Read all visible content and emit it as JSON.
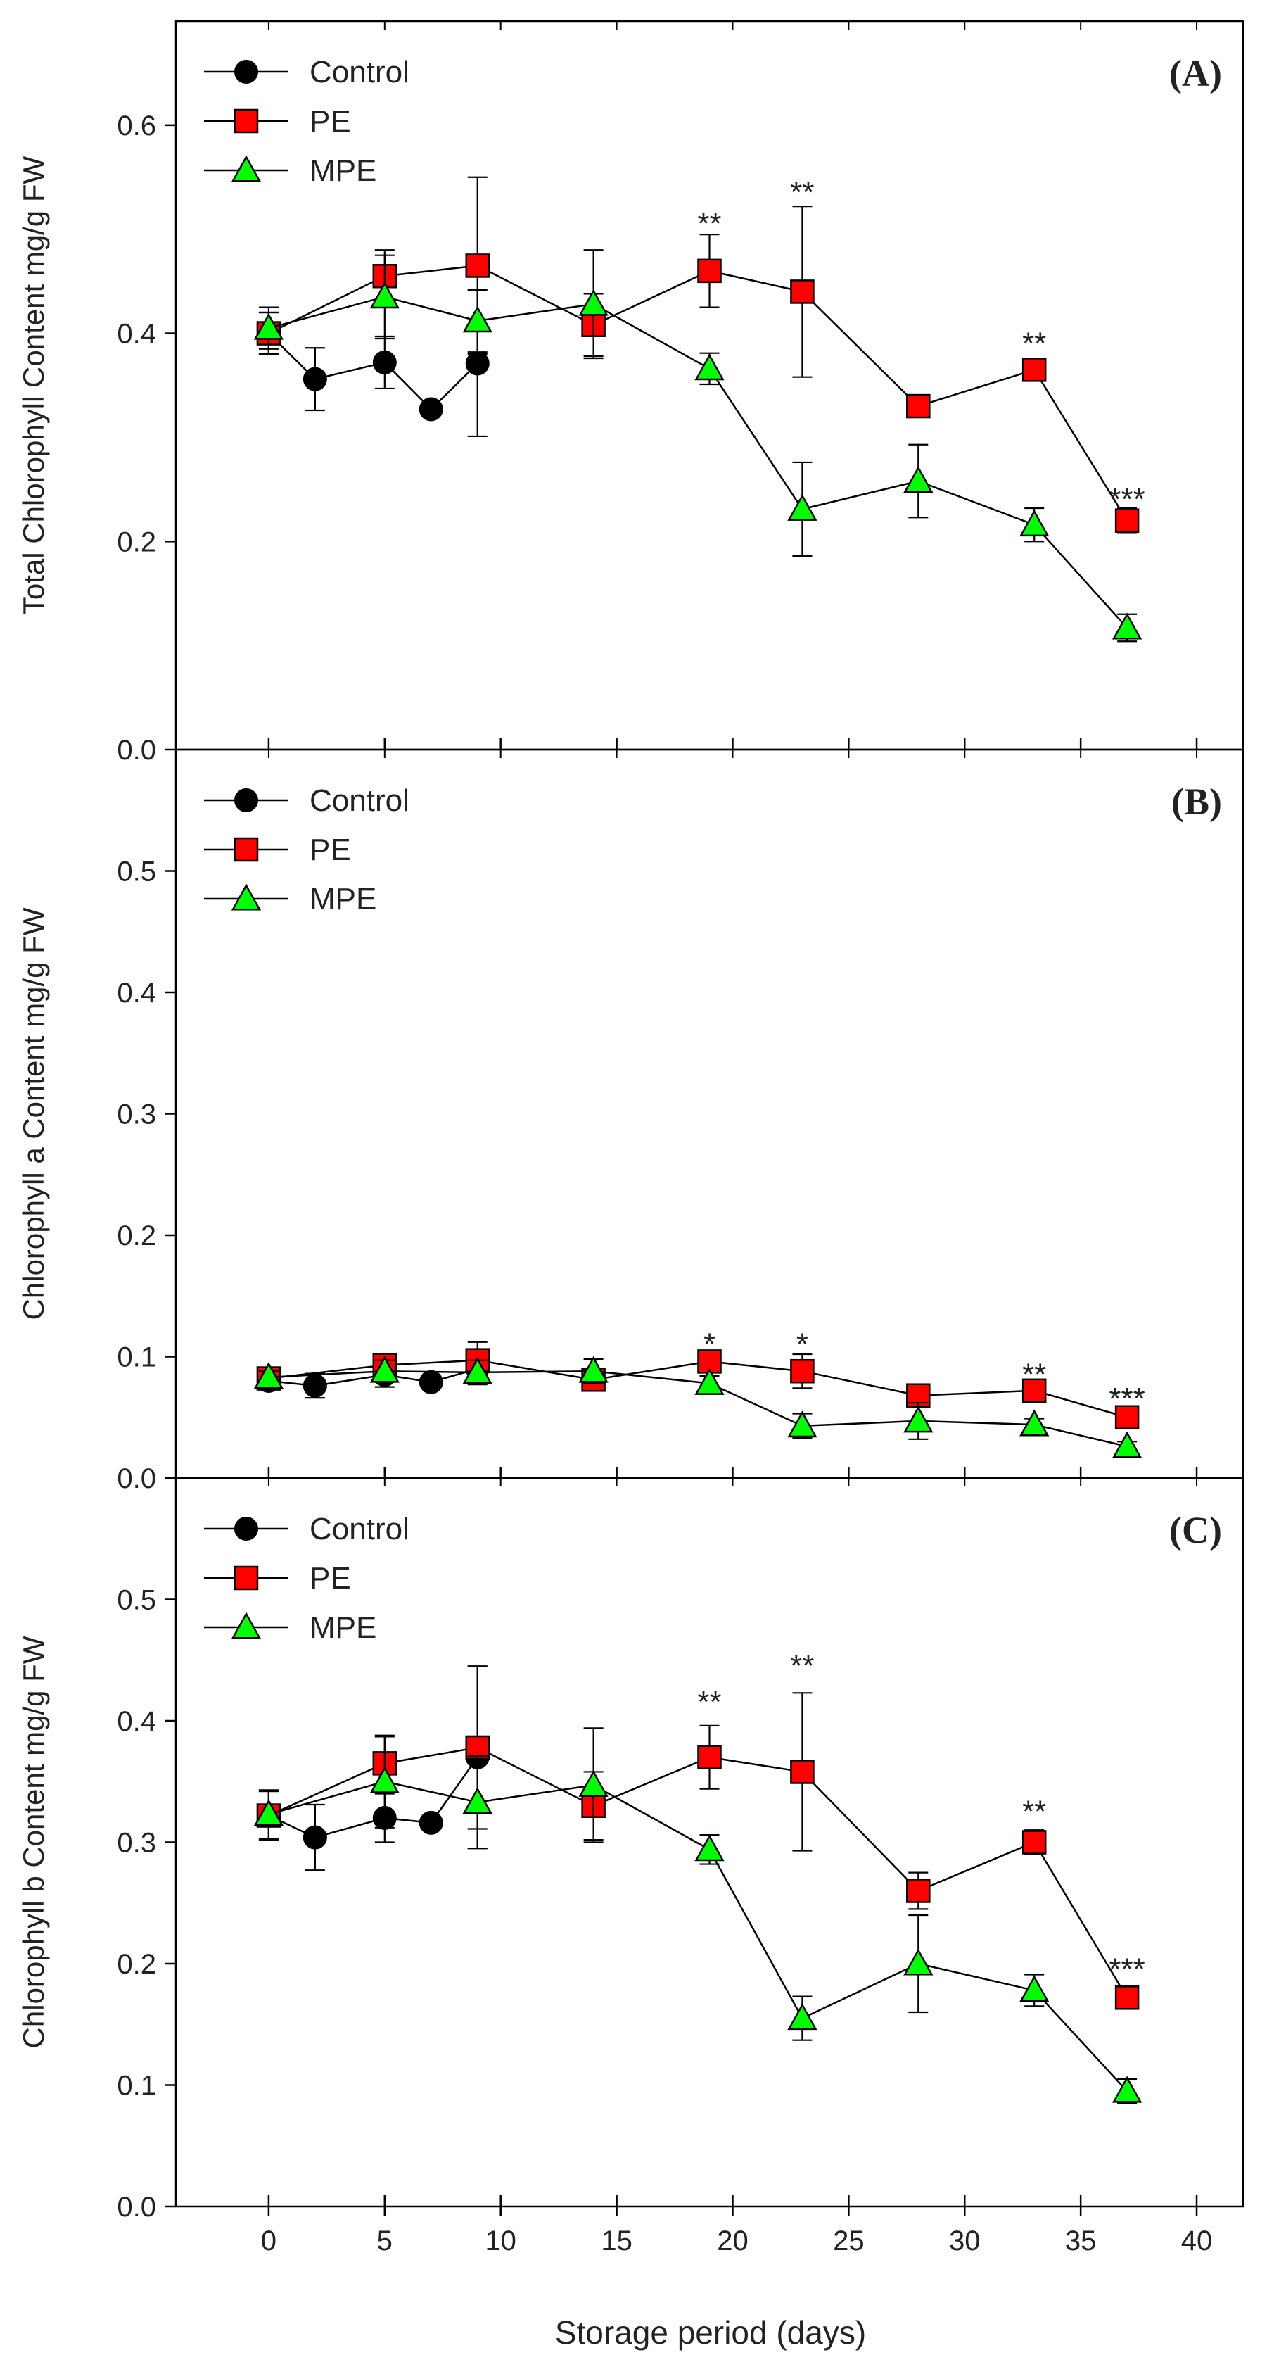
{
  "figure": {
    "xlabel": "Storage period (days)",
    "xticks": [
      0,
      5,
      10,
      15,
      20,
      25,
      30,
      35,
      40
    ],
    "xlim": [
      -4,
      42
    ]
  },
  "colors": {
    "control": "#000000",
    "pe": "#ff0000",
    "mpe": "#00ff00",
    "axis": "#000000"
  },
  "chart_data": [
    {
      "type": "line",
      "panel_label": "(A)",
      "title": "",
      "xlabel": "",
      "ylabel": "Total Chlorophyll Content mg/g FW",
      "ylim": [
        0,
        0.7
      ],
      "yticks": [
        0.0,
        0.2,
        0.4,
        0.6
      ],
      "legend_position": "top-left",
      "series": [
        {
          "name": "Control",
          "key": "control",
          "marker": "circle",
          "x": [
            0,
            2,
            5,
            7,
            9
          ],
          "y": [
            0.4,
            0.356,
            0.372,
            0.327,
            0.371
          ],
          "err": [
            0.02,
            0.03,
            0.025,
            0.005,
            0.07
          ]
        },
        {
          "name": "PE",
          "key": "pe",
          "marker": "square",
          "x": [
            0,
            5,
            9,
            14,
            19,
            23,
            28,
            33,
            37
          ],
          "y": [
            0.4,
            0.455,
            0.465,
            0.408,
            0.46,
            0.44,
            0.33,
            0.365,
            0.22
          ],
          "err": [
            0.02,
            0.025,
            0.085,
            0.03,
            0.035,
            0.082,
            0.008,
            0.01,
            0.012
          ]
        },
        {
          "name": "MPE",
          "key": "mpe",
          "marker": "triangle",
          "x": [
            0,
            5,
            9,
            14,
            19,
            23,
            28,
            33,
            37
          ],
          "y": [
            0.405,
            0.435,
            0.412,
            0.428,
            0.366,
            0.231,
            0.258,
            0.216,
            0.117
          ],
          "err": [
            0.02,
            0.04,
            0.03,
            0.052,
            0.015,
            0.045,
            0.035,
            0.016,
            0.013
          ]
        }
      ],
      "annotations": [
        {
          "x": 19,
          "y": 0.505,
          "text": "**"
        },
        {
          "x": 23,
          "y": 0.535,
          "text": "**"
        },
        {
          "x": 33,
          "y": 0.39,
          "text": "**"
        },
        {
          "x": 37,
          "y": 0.24,
          "text": "***"
        }
      ]
    },
    {
      "type": "line",
      "panel_label": "(B)",
      "title": "",
      "xlabel": "",
      "ylabel": "Chlorophyll a Content mg/g FW",
      "ylim": [
        0,
        0.6
      ],
      "yticks": [
        0.0,
        0.1,
        0.2,
        0.3,
        0.4,
        0.5
      ],
      "legend_position": "top-left",
      "series": [
        {
          "name": "Control",
          "key": "control",
          "marker": "circle",
          "x": [
            0,
            2,
            5,
            7,
            9
          ],
          "y": [
            0.08,
            0.076,
            0.085,
            0.079,
            0.09
          ],
          "err": [
            0.005,
            0.01,
            0.01,
            0.004,
            0.012
          ]
        },
        {
          "name": "PE",
          "key": "pe",
          "marker": "square",
          "x": [
            0,
            5,
            9,
            14,
            19,
            23,
            28,
            33,
            37
          ],
          "y": [
            0.082,
            0.093,
            0.097,
            0.081,
            0.096,
            0.088,
            0.068,
            0.072,
            0.05
          ],
          "err": [
            0.006,
            0.008,
            0.015,
            0.008,
            0.007,
            0.014,
            0.004,
            0.005,
            0.004
          ]
        },
        {
          "name": "MPE",
          "key": "mpe",
          "marker": "triangle",
          "x": [
            0,
            5,
            9,
            14,
            19,
            23,
            28,
            33,
            37
          ],
          "y": [
            0.083,
            0.088,
            0.087,
            0.088,
            0.078,
            0.043,
            0.047,
            0.044,
            0.026
          ],
          "err": [
            0.005,
            0.009,
            0.01,
            0.01,
            0.006,
            0.01,
            0.015,
            0.005,
            0.004
          ]
        }
      ],
      "annotations": [
        {
          "x": 19,
          "y": 0.11,
          "text": "*"
        },
        {
          "x": 23,
          "y": 0.11,
          "text": "*"
        },
        {
          "x": 33,
          "y": 0.085,
          "text": "**"
        },
        {
          "x": 37,
          "y": 0.065,
          "text": "***"
        }
      ]
    },
    {
      "type": "line",
      "panel_label": "(C)",
      "title": "",
      "xlabel": "Storage period (days)",
      "ylabel": "Chlorophyll b Content mg/g FW",
      "ylim": [
        0,
        0.6
      ],
      "yticks": [
        0.0,
        0.1,
        0.2,
        0.3,
        0.4,
        0.5
      ],
      "legend_position": "top-left",
      "series": [
        {
          "name": "Control",
          "key": "control",
          "marker": "circle",
          "x": [
            0,
            2,
            5,
            7,
            9
          ],
          "y": [
            0.322,
            0.304,
            0.32,
            0.316,
            0.37
          ],
          "err": [
            0.02,
            0.027,
            0.02,
            0.005,
            0.075
          ]
        },
        {
          "name": "PE",
          "key": "pe",
          "marker": "square",
          "x": [
            0,
            5,
            9,
            14,
            19,
            23,
            28,
            33,
            37
          ],
          "y": [
            0.322,
            0.365,
            0.378,
            0.33,
            0.37,
            0.358,
            0.26,
            0.3,
            0.172
          ],
          "err": [
            0.02,
            0.022,
            0.067,
            0.028,
            0.026,
            0.065,
            0.015,
            0.01,
            0.008
          ]
        },
        {
          "name": "MPE",
          "key": "mpe",
          "marker": "triangle",
          "x": [
            0,
            5,
            9,
            14,
            19,
            23,
            28,
            33,
            37
          ],
          "y": [
            0.323,
            0.35,
            0.333,
            0.347,
            0.294,
            0.155,
            0.2,
            0.178,
            0.095
          ],
          "err": [
            0.02,
            0.038,
            0.038,
            0.047,
            0.012,
            0.018,
            0.04,
            0.013,
            0.01
          ]
        }
      ],
      "annotations": [
        {
          "x": 19,
          "y": 0.415,
          "text": "**"
        },
        {
          "x": 23,
          "y": 0.445,
          "text": "**"
        },
        {
          "x": 33,
          "y": 0.325,
          "text": "**"
        },
        {
          "x": 37,
          "y": 0.195,
          "text": "***"
        }
      ]
    }
  ]
}
